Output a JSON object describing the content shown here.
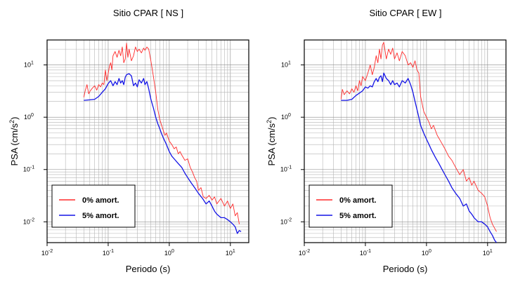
{
  "chart_data": [
    {
      "type": "line",
      "title": "Sitio CPAR [ NS ]",
      "xlabel": "Periodo (s)",
      "ylabel_main": "PSA (cm/s",
      "ylabel_sup": "2",
      "ylabel_end": ")",
      "x_scale": "log",
      "y_scale": "log",
      "xlim": [
        0.01,
        20
      ],
      "ylim": [
        0.004,
        30
      ],
      "grid": true,
      "legend_position": "bottom-left",
      "x_ticks": [
        {
          "value": 0.01,
          "base": "10",
          "exp": "-2"
        },
        {
          "value": 0.1,
          "base": "10",
          "exp": "-1"
        },
        {
          "value": 1,
          "base": "10",
          "exp": "0"
        },
        {
          "value": 10,
          "base": "10",
          "exp": "1"
        }
      ],
      "y_ticks": [
        {
          "value": 0.01,
          "base": "10",
          "exp": "-2"
        },
        {
          "value": 0.1,
          "base": "10",
          "exp": "-1"
        },
        {
          "value": 1,
          "base": "10",
          "exp": "0"
        },
        {
          "value": 10,
          "base": "10",
          "exp": "1"
        }
      ],
      "series": [
        {
          "name": "0% amort.",
          "color": "#ff2a2a",
          "x": [
            0.04,
            0.042,
            0.045,
            0.048,
            0.05,
            0.055,
            0.06,
            0.065,
            0.07,
            0.075,
            0.08,
            0.085,
            0.09,
            0.095,
            0.1,
            0.105,
            0.11,
            0.115,
            0.12,
            0.13,
            0.14,
            0.15,
            0.16,
            0.17,
            0.18,
            0.19,
            0.2,
            0.21,
            0.22,
            0.24,
            0.26,
            0.28,
            0.3,
            0.32,
            0.35,
            0.38,
            0.4,
            0.43,
            0.46,
            0.5,
            0.55,
            0.6,
            0.65,
            0.7,
            0.75,
            0.8,
            0.85,
            0.9,
            1.0,
            1.1,
            1.2,
            1.3,
            1.4,
            1.5,
            1.6,
            1.8,
            2.0,
            2.2,
            2.4,
            2.6,
            2.8,
            3.0,
            3.3,
            3.6,
            4.0,
            4.5,
            5.0,
            5.5,
            6.0,
            7.0,
            8.0,
            9.0,
            10.0,
            11.0,
            12.0,
            13.0,
            14.0
          ],
          "y": [
            2.4,
            3.2,
            4.2,
            2.8,
            3.1,
            3.6,
            4.0,
            3.3,
            4.2,
            3.8,
            4.5,
            4.2,
            8.0,
            5.0,
            6.8,
            9.5,
            11.0,
            8.0,
            15.0,
            18.0,
            14.0,
            19.0,
            15.0,
            22.0,
            11.0,
            13.0,
            26.0,
            14.0,
            20.0,
            12.0,
            15.0,
            22.0,
            18.0,
            20.0,
            17.0,
            21.0,
            19.0,
            22.0,
            20.0,
            12.0,
            6.0,
            3.0,
            1.4,
            0.9,
            0.7,
            0.55,
            0.45,
            0.5,
            0.35,
            0.3,
            0.25,
            0.27,
            0.2,
            0.22,
            0.19,
            0.15,
            0.16,
            0.11,
            0.09,
            0.07,
            0.06,
            0.04,
            0.045,
            0.03,
            0.028,
            0.032,
            0.026,
            0.03,
            0.022,
            0.028,
            0.02,
            0.025,
            0.018,
            0.022,
            0.013,
            0.015,
            0.009
          ]
        },
        {
          "name": "5% amort.",
          "color": "#1414e6",
          "x": [
            0.04,
            0.05,
            0.06,
            0.07,
            0.08,
            0.09,
            0.1,
            0.11,
            0.12,
            0.13,
            0.14,
            0.15,
            0.16,
            0.17,
            0.18,
            0.19,
            0.2,
            0.22,
            0.24,
            0.26,
            0.28,
            0.3,
            0.32,
            0.35,
            0.38,
            0.4,
            0.43,
            0.46,
            0.5,
            0.55,
            0.6,
            0.65,
            0.7,
            0.75,
            0.8,
            0.9,
            1.0,
            1.1,
            1.2,
            1.4,
            1.6,
            1.8,
            2.0,
            2.3,
            2.6,
            3.0,
            3.5,
            4.0,
            4.5,
            5.0,
            5.5,
            6.0,
            7.0,
            8.0,
            9.0,
            10.0,
            11.0,
            12.0,
            13.0,
            14.0,
            15.0
          ],
          "y": [
            2.1,
            2.15,
            2.2,
            2.5,
            3.0,
            3.5,
            4.4,
            5.0,
            4.0,
            4.8,
            4.2,
            5.5,
            4.5,
            5.0,
            4.2,
            5.8,
            6.5,
            6.8,
            6.2,
            4.0,
            4.5,
            3.8,
            5.2,
            4.5,
            5.5,
            4.2,
            4.8,
            3.5,
            2.2,
            1.5,
            1.0,
            0.75,
            0.6,
            0.48,
            0.4,
            0.3,
            0.22,
            0.18,
            0.16,
            0.13,
            0.11,
            0.085,
            0.07,
            0.055,
            0.045,
            0.035,
            0.028,
            0.022,
            0.025,
            0.02,
            0.016,
            0.014,
            0.012,
            0.012,
            0.011,
            0.01,
            0.009,
            0.008,
            0.006,
            0.0068,
            0.0065
          ]
        }
      ]
    },
    {
      "type": "line",
      "title": "Sitio CPAR [ EW ]",
      "xlabel": "Periodo (s)",
      "ylabel_main": "PSA (cm/s",
      "ylabel_sup": "2",
      "ylabel_end": ")",
      "x_scale": "log",
      "y_scale": "log",
      "xlim": [
        0.01,
        20
      ],
      "ylim": [
        0.004,
        30
      ],
      "grid": true,
      "legend_position": "bottom-left",
      "x_ticks": [
        {
          "value": 0.01,
          "base": "10",
          "exp": "-2"
        },
        {
          "value": 0.1,
          "base": "10",
          "exp": "-1"
        },
        {
          "value": 1,
          "base": "10",
          "exp": "0"
        },
        {
          "value": 10,
          "base": "10",
          "exp": "1"
        }
      ],
      "y_ticks": [
        {
          "value": 0.01,
          "base": "10",
          "exp": "-2"
        },
        {
          "value": 0.1,
          "base": "10",
          "exp": "-1"
        },
        {
          "value": 1,
          "base": "10",
          "exp": "0"
        },
        {
          "value": 10,
          "base": "10",
          "exp": "1"
        }
      ],
      "series": [
        {
          "name": "0% amort.",
          "color": "#ff2a2a",
          "x": [
            0.04,
            0.042,
            0.045,
            0.05,
            0.055,
            0.06,
            0.065,
            0.07,
            0.075,
            0.08,
            0.085,
            0.09,
            0.1,
            0.11,
            0.12,
            0.13,
            0.14,
            0.15,
            0.16,
            0.17,
            0.18,
            0.19,
            0.2,
            0.22,
            0.24,
            0.26,
            0.28,
            0.3,
            0.33,
            0.36,
            0.4,
            0.45,
            0.5,
            0.55,
            0.6,
            0.65,
            0.7,
            0.75,
            0.8,
            0.9,
            1.0,
            1.1,
            1.2,
            1.3,
            1.5,
            1.7,
            2.0,
            2.3,
            2.6,
            3.0,
            3.5,
            4.0,
            4.5,
            5.0,
            5.5,
            6.0,
            7.0,
            8.0,
            9.0,
            10.0,
            11.0,
            12.0,
            14.0
          ],
          "y": [
            2.2,
            3.4,
            2.7,
            3.2,
            2.8,
            3.5,
            3.0,
            4.0,
            3.2,
            5.0,
            4.0,
            6.0,
            5.0,
            7.0,
            10.0,
            6.5,
            9.0,
            15.0,
            11.0,
            20.0,
            13.0,
            24.0,
            27.0,
            13.0,
            20.0,
            16.0,
            21.0,
            13.0,
            17.0,
            12.0,
            18.0,
            15.0,
            10.0,
            11.0,
            9.0,
            12.0,
            8.0,
            7.0,
            2.5,
            1.3,
            1.0,
            0.8,
            0.6,
            0.7,
            0.45,
            0.35,
            0.25,
            0.18,
            0.15,
            0.11,
            0.08,
            0.1,
            0.06,
            0.07,
            0.05,
            0.06,
            0.04,
            0.035,
            0.03,
            0.02,
            0.012,
            0.009,
            0.0065
          ]
        },
        {
          "name": "5% amort.",
          "color": "#1414e6",
          "x": [
            0.04,
            0.05,
            0.06,
            0.07,
            0.08,
            0.09,
            0.1,
            0.11,
            0.12,
            0.13,
            0.14,
            0.15,
            0.16,
            0.17,
            0.18,
            0.19,
            0.2,
            0.22,
            0.24,
            0.26,
            0.28,
            0.3,
            0.33,
            0.36,
            0.4,
            0.45,
            0.5,
            0.55,
            0.6,
            0.65,
            0.7,
            0.75,
            0.8,
            0.9,
            1.0,
            1.1,
            1.2,
            1.4,
            1.6,
            1.8,
            2.0,
            2.3,
            2.6,
            3.0,
            3.5,
            4.0,
            4.5,
            5.0,
            5.5,
            6.0,
            7.0,
            8.0,
            9.0,
            10.0,
            11.0,
            12.0,
            13.0,
            14.0
          ],
          "y": [
            2.1,
            2.1,
            2.2,
            2.6,
            2.9,
            3.2,
            3.8,
            3.6,
            4.0,
            3.8,
            4.8,
            5.5,
            4.8,
            5.8,
            6.2,
            4.8,
            7.0,
            5.5,
            5.0,
            4.2,
            5.0,
            4.2,
            4.5,
            3.8,
            5.0,
            4.5,
            5.5,
            4.2,
            3.0,
            2.0,
            1.4,
            1.0,
            0.7,
            0.5,
            0.38,
            0.3,
            0.24,
            0.17,
            0.13,
            0.1,
            0.08,
            0.06,
            0.045,
            0.035,
            0.028,
            0.02,
            0.022,
            0.016,
            0.014,
            0.012,
            0.01,
            0.01,
            0.009,
            0.008,
            0.0065,
            0.0055,
            0.0045,
            0.004
          ]
        }
      ]
    }
  ]
}
